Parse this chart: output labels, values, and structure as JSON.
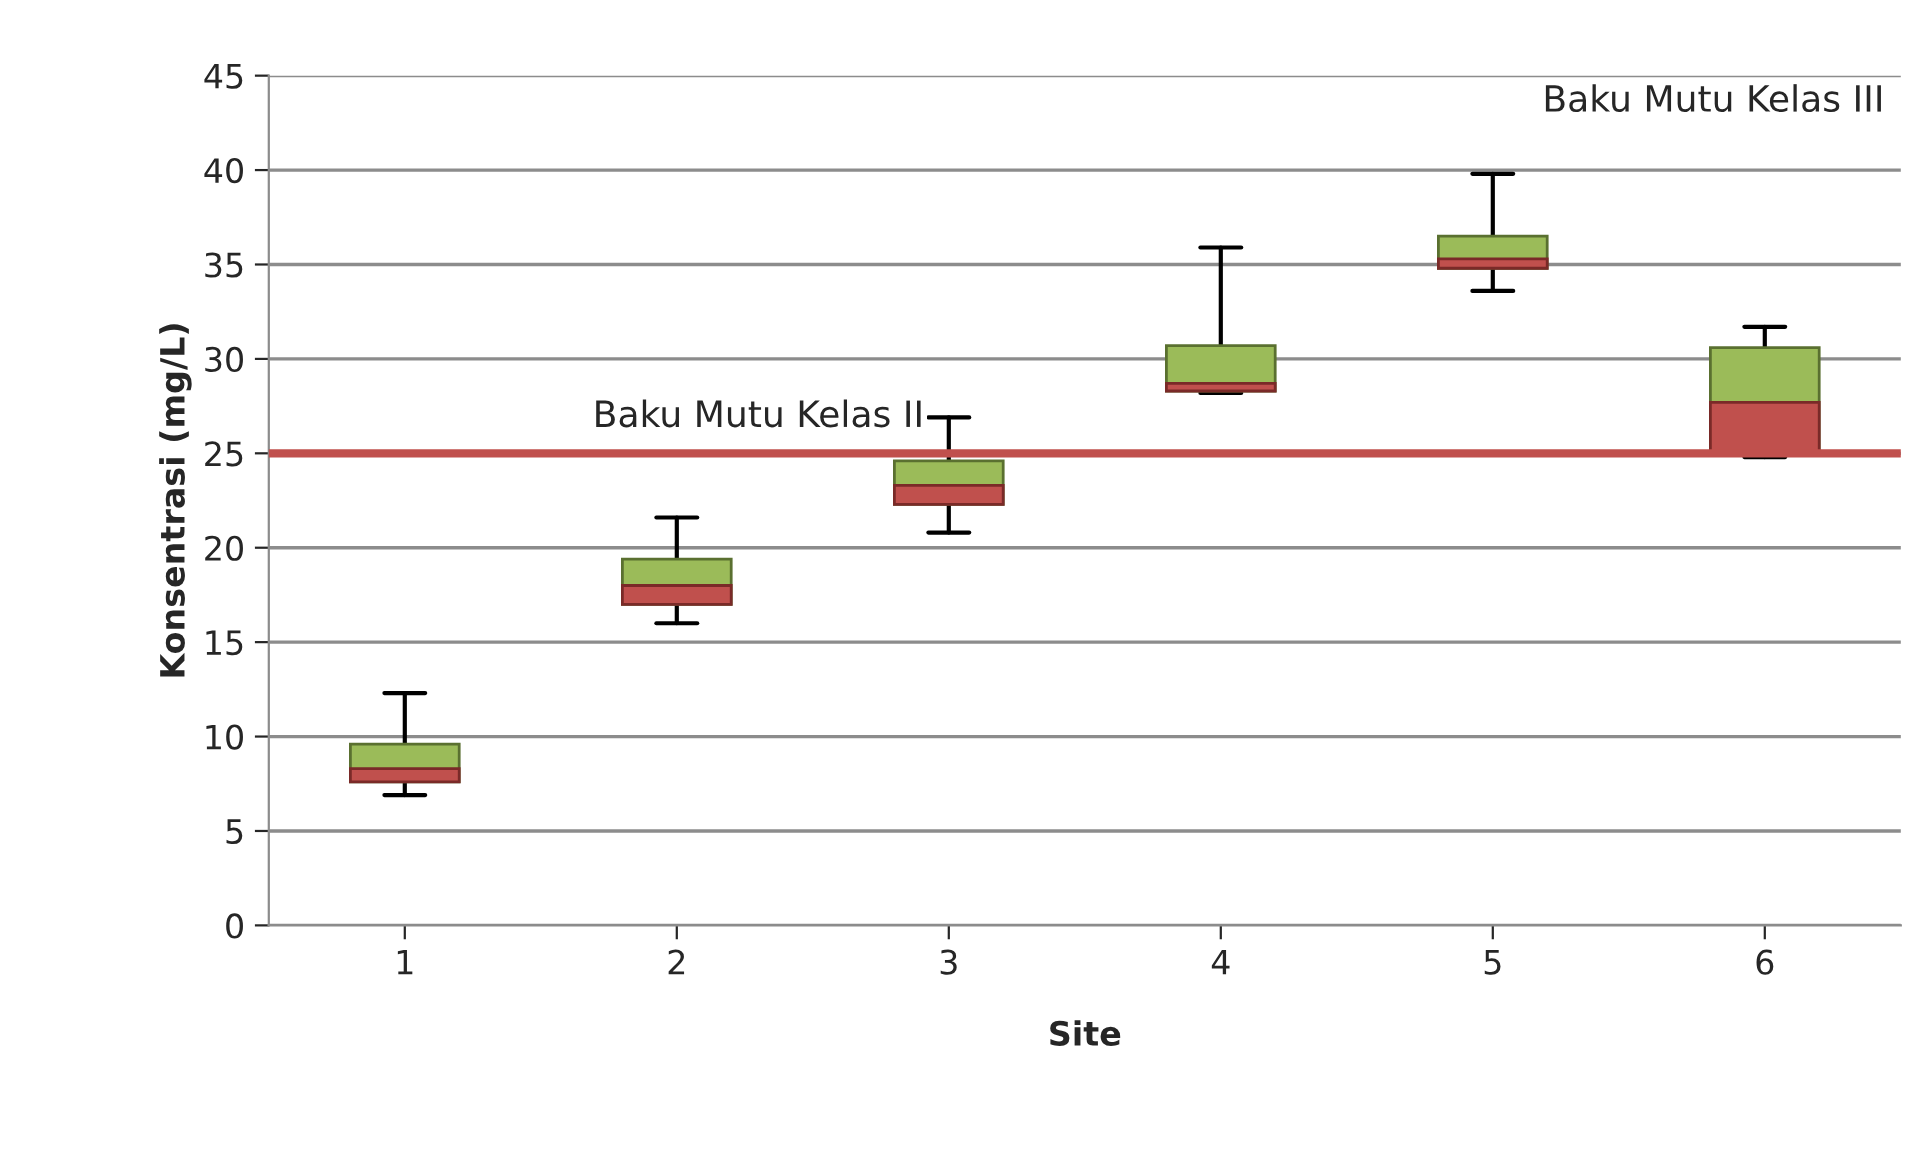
{
  "chart_data": {
    "type": "box",
    "xlabel": "Site",
    "ylabel": "Konsentrasi (mg/L)",
    "categories": [
      "1",
      "2",
      "3",
      "4",
      "5",
      "6"
    ],
    "series": [
      {
        "color": "#9bbb59",
        "boxes": [
          {
            "low": 6.9,
            "q1": 7.6,
            "median": 8.3,
            "q3": 9.6,
            "high": 12.3
          },
          {
            "low": 16.0,
            "q1": 17.0,
            "median": 18.0,
            "q3": 19.4,
            "high": 21.6
          },
          {
            "low": 20.8,
            "q1": 22.3,
            "median": 23.3,
            "q3": 24.6,
            "high": 26.9
          },
          {
            "low": 28.2,
            "q1": 28.3,
            "median": 28.7,
            "q3": 30.7,
            "high": 35.9
          },
          {
            "low": 33.6,
            "q1": 34.8,
            "median": 35.3,
            "q3": 36.5,
            "high": 39.8
          },
          {
            "low": 24.8,
            "q1": 25.0,
            "median": 27.7,
            "q3": 30.6,
            "high": 31.7
          }
        ]
      }
    ],
    "color": "#c0504d",
    "ylim": [
      0,
      45
    ],
    "yticks": [
      0,
      5,
      10,
      15,
      20,
      25,
      30,
      35,
      40,
      45
    ],
    "grid": "y",
    "ref_lines": [
      {
        "axis": "y",
        "value": 25,
        "label": "Baku Mutu Kelas II",
        "color": "#c0504d"
      }
    ],
    "annotations": [
      "Baku Mutu Kelas III"
    ]
  }
}
